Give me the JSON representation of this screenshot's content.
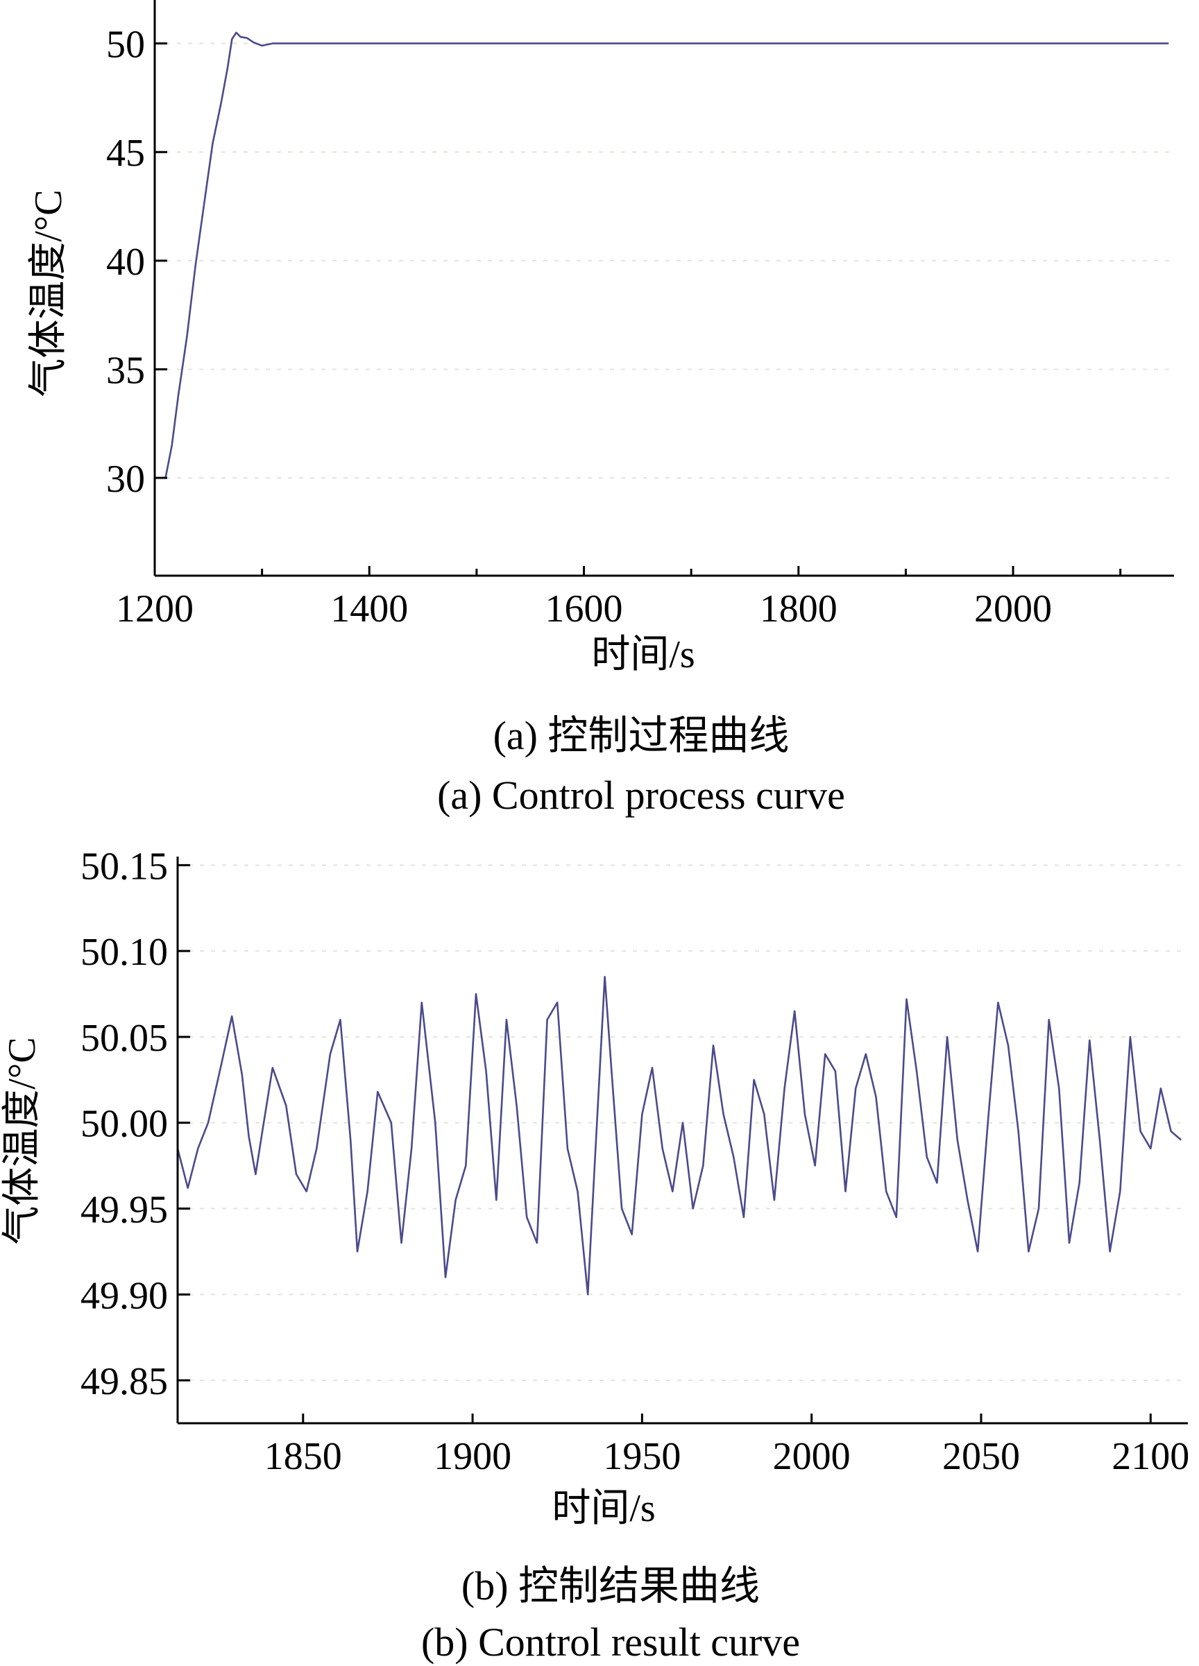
{
  "colors": {
    "series": "#4a4a8c",
    "axis": "#000000",
    "grid": "#e4e4dc"
  },
  "chart_data": [
    {
      "type": "line",
      "caption_cn": "(a) 控制过程曲线",
      "caption_en": "(a) Control process curve",
      "xlabel": "时间/s",
      "ylabel": "气体温度/°C",
      "xlim": [
        1200,
        2150
      ],
      "ylim": [
        25.5,
        52
      ],
      "xticks": [
        1200,
        1400,
        1600,
        1800,
        2000
      ],
      "xtick_labels": [
        "1200",
        "1400",
        "1600",
        "1800",
        "2000"
      ],
      "xminor": [
        1300,
        1500,
        1700,
        1900,
        2100
      ],
      "yticks": [
        30,
        35,
        40,
        45,
        50
      ],
      "ytick_labels": [
        "30",
        "35",
        "40",
        "45",
        "50"
      ],
      "grid": true,
      "series": [
        {
          "x": [
            1210,
            1216,
            1222,
            1230,
            1238,
            1246,
            1254,
            1262,
            1268,
            1272,
            1276,
            1280,
            1286,
            1292,
            1300,
            1310,
            1330,
            1400,
            1500,
            1600,
            1700,
            1800,
            1900,
            2000,
            2100,
            2145
          ],
          "y": [
            30.0,
            31.5,
            33.8,
            36.5,
            39.8,
            42.6,
            45.4,
            47.3,
            48.9,
            50.2,
            50.5,
            50.3,
            50.25,
            50.05,
            49.9,
            50.0,
            50.0,
            50.0,
            50.0,
            50.0,
            50.0,
            50.0,
            50.0,
            50.0,
            50.0,
            50.0
          ]
        }
      ]
    },
    {
      "type": "line",
      "caption_cn": "(b) 控制结果曲线",
      "caption_en": "(b) Control result curve",
      "xlabel": "时间/s",
      "ylabel": "气体温度/°C",
      "xlim": [
        1813,
        2111
      ],
      "ylim": [
        49.825,
        50.155
      ],
      "xticks": [
        1850,
        1900,
        1950,
        2000,
        2050,
        2100
      ],
      "xtick_labels": [
        "1850",
        "1900",
        "1950",
        "2000",
        "2050",
        "2100"
      ],
      "yticks": [
        49.85,
        49.9,
        49.95,
        50.0,
        50.05,
        50.1,
        50.15
      ],
      "ytick_labels": [
        "49.85",
        "49.90",
        "49.95",
        "50.00",
        "50.05",
        "50.10",
        "50.15"
      ],
      "grid": true,
      "series": [
        {
          "x": [
            1813,
            1816,
            1819,
            1822,
            1826,
            1829,
            1832,
            1834,
            1836,
            1838,
            1841,
            1845,
            1848,
            1851,
            1854,
            1858,
            1861,
            1864,
            1866,
            1869,
            1872,
            1876,
            1879,
            1882,
            1885,
            1889,
            1892,
            1895,
            1898,
            1901,
            1904,
            1907,
            1910,
            1913,
            1916,
            1919,
            1922,
            1925,
            1928,
            1931,
            1934,
            1936,
            1939,
            1941,
            1944,
            1947,
            1950,
            1953,
            1956,
            1959,
            1962,
            1965,
            1968,
            1971,
            1974,
            1977,
            1980,
            1983,
            1986,
            1989,
            1992,
            1995,
            1998,
            2001,
            2004,
            2007,
            2010,
            2013,
            2016,
            2019,
            2022,
            2025,
            2028,
            2031,
            2034,
            2037,
            2040,
            2043,
            2046,
            2049,
            2052,
            2055,
            2058,
            2061,
            2064,
            2067,
            2070,
            2073,
            2076,
            2079,
            2082,
            2085,
            2088,
            2091,
            2094,
            2097,
            2100,
            2103,
            2106,
            2109
          ],
          "y": [
            49.985,
            49.962,
            49.985,
            50.0,
            50.035,
            50.062,
            50.028,
            49.992,
            49.97,
            49.995,
            50.032,
            50.01,
            49.97,
            49.96,
            49.985,
            50.04,
            50.06,
            49.99,
            49.925,
            49.96,
            50.018,
            50.0,
            49.93,
            49.985,
            50.07,
            50.0,
            49.91,
            49.955,
            49.975,
            50.075,
            50.03,
            49.955,
            50.06,
            50.01,
            49.945,
            49.93,
            50.06,
            50.07,
            49.985,
            49.96,
            49.9,
            49.975,
            50.085,
            50.03,
            49.95,
            49.935,
            50.005,
            50.032,
            49.985,
            49.96,
            50.0,
            49.95,
            49.975,
            50.045,
            50.005,
            49.98,
            49.945,
            50.025,
            50.005,
            49.955,
            50.02,
            50.065,
            50.005,
            49.975,
            50.04,
            50.03,
            49.96,
            50.02,
            50.04,
            50.015,
            49.96,
            49.945,
            50.072,
            50.03,
            49.98,
            49.965,
            50.05,
            49.99,
            49.955,
            49.925,
            50.0,
            50.07,
            50.045,
            49.995,
            49.925,
            49.95,
            50.06,
            50.02,
            49.93,
            49.965,
            50.048,
            49.99,
            49.925,
            49.96,
            50.05,
            49.995,
            49.985,
            50.02,
            49.995,
            49.99
          ]
        }
      ]
    }
  ]
}
